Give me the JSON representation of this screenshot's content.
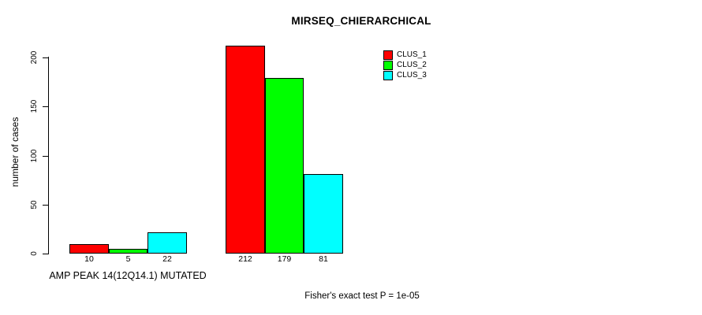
{
  "chart_data": {
    "type": "bar",
    "title": "MIRSEQ_CHIERARCHICAL",
    "ylabel": "number of cases",
    "xlabel": "AMP PEAK 14(12Q14.1) MUTATED",
    "footnote": "Fisher's exact test P = 1e-05",
    "ylim": [
      0,
      200
    ],
    "yticks": [
      0,
      50,
      100,
      150,
      200
    ],
    "grid": false,
    "legend_position": "top-right",
    "background_color": "#ffffff",
    "series": [
      {
        "name": "CLUS_1",
        "color": "#ff0000"
      },
      {
        "name": "CLUS_2",
        "color": "#00ff00"
      },
      {
        "name": "CLUS_3",
        "color": "#00ffff"
      }
    ],
    "groups": [
      {
        "label": "AMP PEAK 14(12Q14.1) MUTATED",
        "values": [
          10,
          5,
          22
        ]
      },
      {
        "label": "",
        "values": [
          212,
          179,
          81
        ]
      }
    ],
    "bar_value_labels": [
      [
        "10",
        "5",
        "22"
      ],
      [
        "212",
        "179",
        "81"
      ]
    ]
  }
}
